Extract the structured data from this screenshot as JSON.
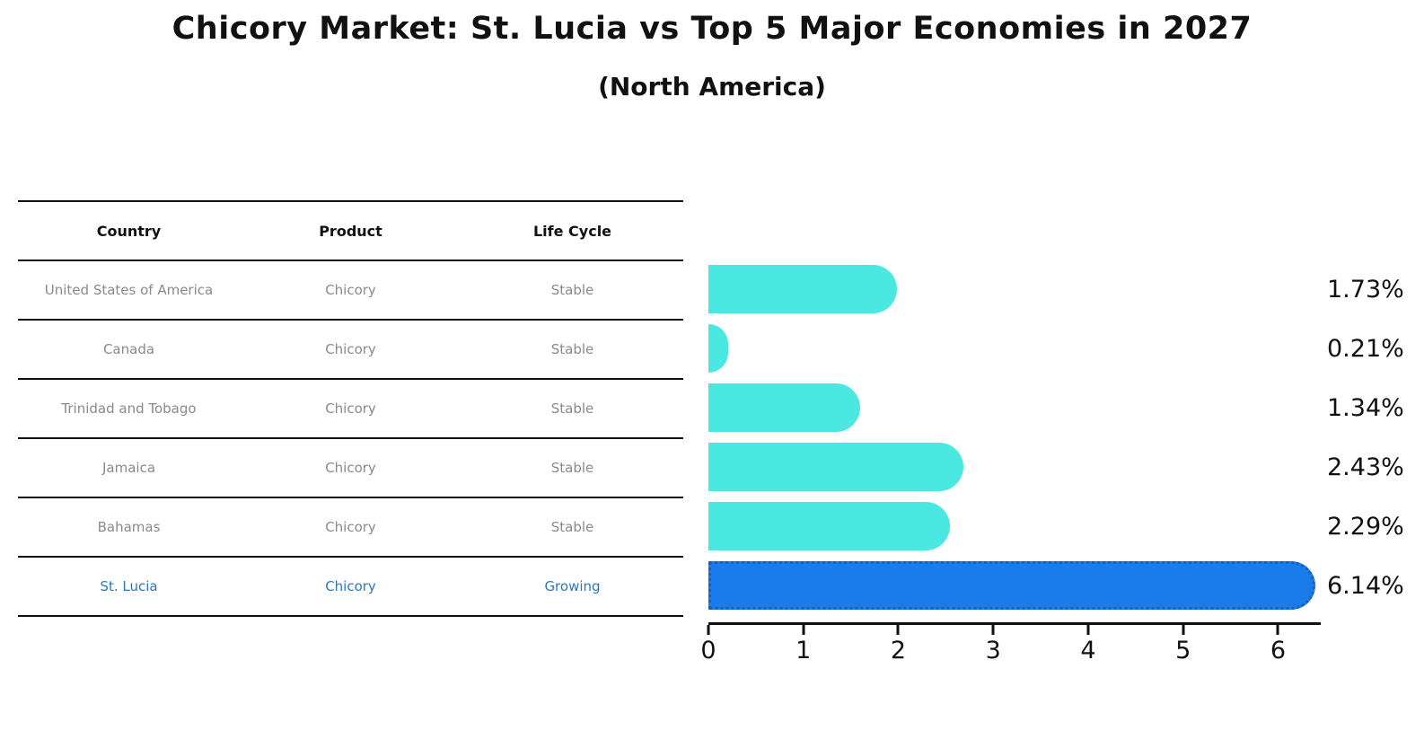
{
  "chart_data": {
    "type": "bar",
    "orientation": "horizontal",
    "title": "Chicory Market: St. Lucia vs Top 5 Major Economies in 2027",
    "subtitle": "(North America)",
    "categories": [
      "United States of America",
      "Canada",
      "Trinidad and Tobago",
      "Jamaica",
      "Bahamas",
      "St. Lucia"
    ],
    "values": [
      1.73,
      0.21,
      1.34,
      2.43,
      2.29,
      6.14
    ],
    "value_labels": [
      "1.73%",
      "0.21%",
      "1.34%",
      "2.43%",
      "2.29%",
      "6.14%"
    ],
    "xticks": [
      "0",
      "1",
      "2",
      "3",
      "4",
      "5",
      "6"
    ],
    "xlim": [
      0,
      6.45
    ],
    "grid": false,
    "legend": null,
    "highlight_index": 5,
    "colors": {
      "bar": "#4ae8e0",
      "highlight_bar": "#1a7ce8",
      "highlight_bar_border": "#1560c2",
      "highlight_text": "#2d77b9",
      "cell_text": "#8a8a8a",
      "axis": "#111111"
    }
  },
  "table": {
    "headers": [
      "Country",
      "Product",
      "Life Cycle"
    ],
    "rows": [
      {
        "country": "United States of America",
        "product": "Chicory",
        "life_cycle": "Stable",
        "highlight": false
      },
      {
        "country": "Canada",
        "product": "Chicory",
        "life_cycle": "Stable",
        "highlight": false
      },
      {
        "country": "Trinidad and Tobago",
        "product": "Chicory",
        "life_cycle": "Stable",
        "highlight": false
      },
      {
        "country": "Jamaica",
        "product": "Chicory",
        "life_cycle": "Stable",
        "highlight": false
      },
      {
        "country": "Bahamas",
        "product": "Chicory",
        "life_cycle": "Stable",
        "highlight": false
      },
      {
        "country": "St. Lucia",
        "product": "Chicory",
        "life_cycle": "Growing",
        "highlight": true
      }
    ]
  }
}
